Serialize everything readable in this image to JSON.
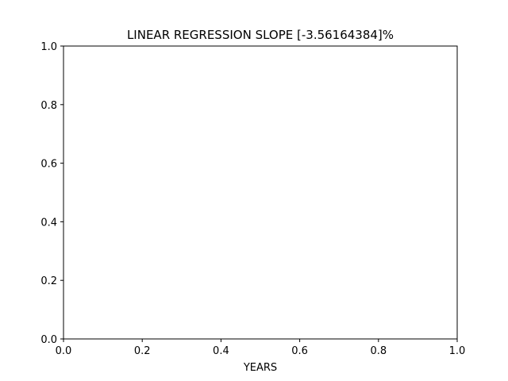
{
  "chart_data": {
    "type": "line",
    "title": "LINEAR REGRESSION SLOPE [-3.56164384]%",
    "xlabel": "YEARS",
    "ylabel": "",
    "xlim": [
      0.0,
      1.0
    ],
    "ylim": [
      0.0,
      1.0
    ],
    "x_ticks": [
      "0.0",
      "0.2",
      "0.4",
      "0.6",
      "0.8",
      "1.0"
    ],
    "y_ticks": [
      "0.0",
      "0.2",
      "0.4",
      "0.6",
      "0.8",
      "1.0"
    ],
    "grid": false,
    "series": []
  },
  "colors": {
    "background": "#ffffff",
    "axes": "#000000"
  }
}
